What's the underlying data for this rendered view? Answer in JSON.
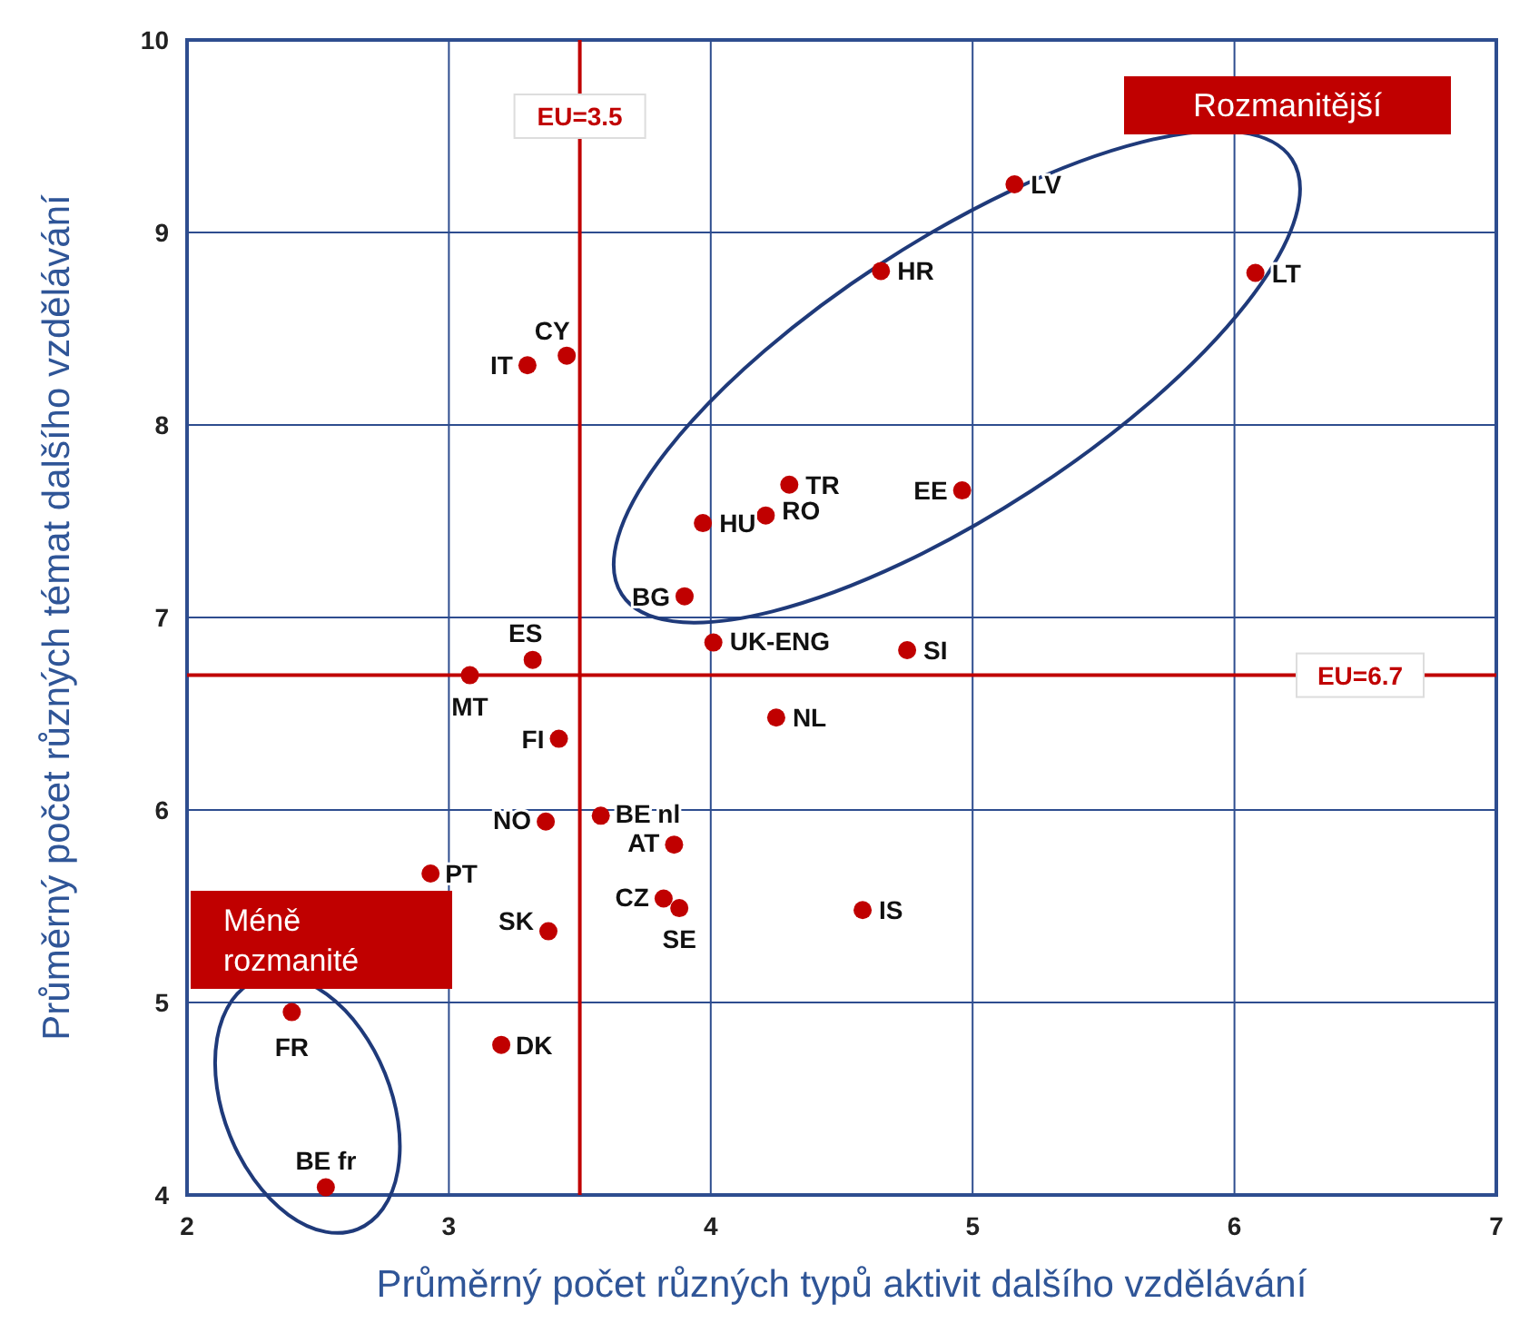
{
  "chart_data": {
    "type": "scatter",
    "xlabel": "Průměrný počet různých typů aktivit dalšího vzdělávání",
    "ylabel": "Průměrný počet různých témat dalšího vzdělávání",
    "xlim": [
      2,
      7
    ],
    "ylim": [
      4,
      10
    ],
    "xticks": [
      2,
      3,
      4,
      5,
      6,
      7
    ],
    "yticks": [
      4,
      5,
      6,
      7,
      8,
      9,
      10
    ],
    "grid": true,
    "marker": "circle",
    "series": [
      {
        "color": "#c00000",
        "x": [
          5.16,
          4.65,
          6.08,
          3.45,
          3.3,
          4.3,
          4.96,
          3.97,
          4.21,
          3.9,
          4.01,
          4.75,
          3.32,
          3.08,
          3.42,
          4.25,
          3.37,
          3.58,
          3.86,
          2.93,
          3.82,
          3.88,
          4.58,
          3.38,
          2.4,
          3.2,
          2.53
        ],
        "values": [
          9.25,
          8.8,
          8.79,
          8.36,
          8.31,
          7.69,
          7.66,
          7.49,
          7.53,
          7.11,
          6.87,
          6.83,
          6.78,
          6.7,
          6.37,
          6.48,
          5.94,
          5.97,
          5.82,
          5.67,
          5.54,
          5.49,
          5.48,
          5.37,
          4.95,
          4.78,
          4.04
        ]
      }
    ],
    "ref_lines": [
      {
        "axis": "x",
        "value": 3.5,
        "label": "EU=3.5",
        "color": "#c00000"
      },
      {
        "axis": "y",
        "value": 6.7,
        "label": "EU=6.7",
        "color": "#c00000"
      }
    ],
    "annotations": [
      {
        "text": "LV",
        "x": 5.16,
        "y": 9.25
      },
      {
        "text": "HR",
        "x": 4.65,
        "y": 8.8
      },
      {
        "text": "LT",
        "x": 6.08,
        "y": 8.79
      },
      {
        "text": "CY",
        "x": 3.45,
        "y": 8.36
      },
      {
        "text": "IT",
        "x": 3.3,
        "y": 8.31
      },
      {
        "text": "TR",
        "x": 4.3,
        "y": 7.69
      },
      {
        "text": "EE",
        "x": 4.96,
        "y": 7.66
      },
      {
        "text": "HU",
        "x": 3.97,
        "y": 7.49
      },
      {
        "text": "RO",
        "x": 4.21,
        "y": 7.53
      },
      {
        "text": "BG",
        "x": 3.9,
        "y": 7.11
      },
      {
        "text": "UK-ENG",
        "x": 4.01,
        "y": 6.87
      },
      {
        "text": "SI",
        "x": 4.75,
        "y": 6.83
      },
      {
        "text": "ES",
        "x": 3.32,
        "y": 6.78
      },
      {
        "text": "MT",
        "x": 3.08,
        "y": 6.7
      },
      {
        "text": "FI",
        "x": 3.42,
        "y": 6.37
      },
      {
        "text": "NL",
        "x": 4.25,
        "y": 6.48
      },
      {
        "text": "NO",
        "x": 3.37,
        "y": 5.94
      },
      {
        "text": "BE nl",
        "x": 3.58,
        "y": 5.97
      },
      {
        "text": "AT",
        "x": 3.86,
        "y": 5.82
      },
      {
        "text": "PT",
        "x": 2.93,
        "y": 5.67
      },
      {
        "text": "CZ",
        "x": 3.82,
        "y": 5.54
      },
      {
        "text": "SE",
        "x": 3.88,
        "y": 5.49
      },
      {
        "text": "IS",
        "x": 4.58,
        "y": 5.48
      },
      {
        "text": "SK",
        "x": 3.38,
        "y": 5.37
      },
      {
        "text": "FR",
        "x": 2.4,
        "y": 4.95
      },
      {
        "text": "DK",
        "x": 3.2,
        "y": 4.78
      },
      {
        "text": "BE fr",
        "x": 2.53,
        "y": 4.04
      },
      "Rozmanitější",
      "Méně rozmanité"
    ]
  }
}
